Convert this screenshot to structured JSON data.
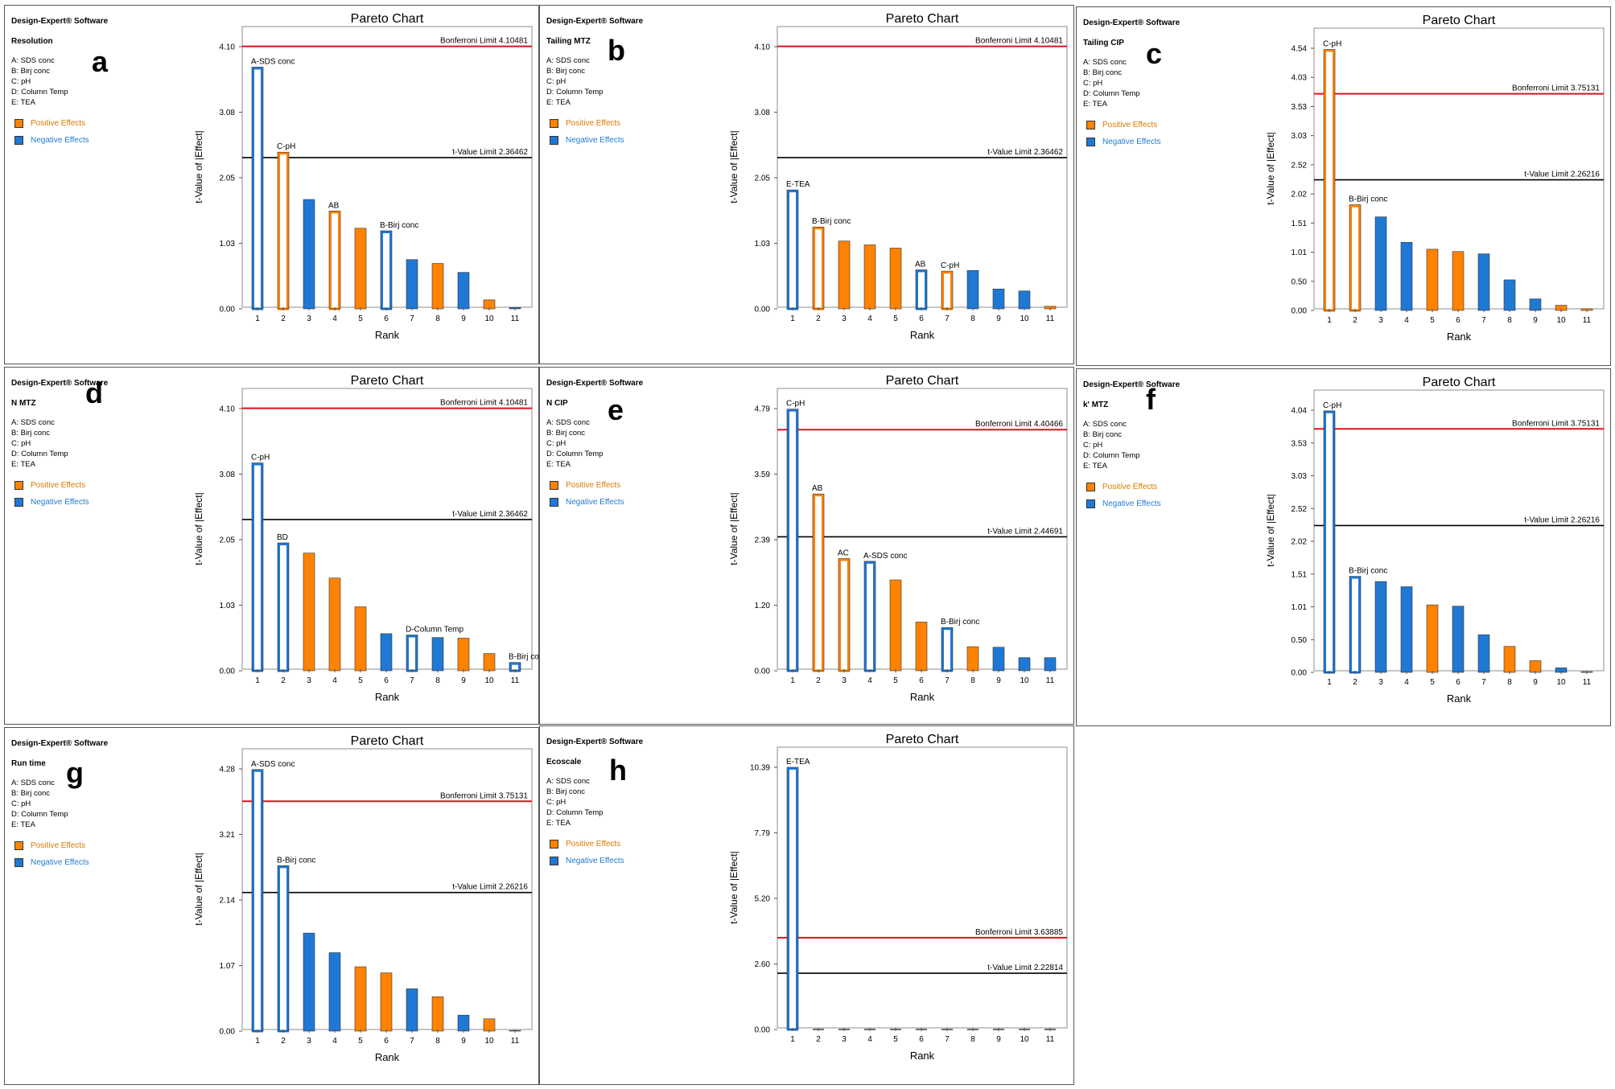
{
  "colors": {
    "positive": "#ff8200",
    "negative": "#1f78d4",
    "bonferroni": "#e0111b",
    "tvalue": "#000000",
    "posText": "#d97a00",
    "negText": "#1f7bd3"
  },
  "chart_data": [
    {
      "panel": "a",
      "type": "bar",
      "chart_title": "Pareto Chart",
      "brand": "Design-Expert® Software",
      "response": "Resolution",
      "factors": [
        "A: SDS conc",
        "B: Birj conc",
        "C: pH",
        "D: Column Temp",
        "E: TEA"
      ],
      "legend": [
        "Positive Effects",
        "Negative Effects"
      ],
      "xlabel": "Rank",
      "ylabel": "t-Value of |Effect|",
      "yticks": [
        "0.00",
        "1.03",
        "2.05",
        "3.08",
        "4.10"
      ],
      "ylim": [
        0,
        4.1
      ],
      "categories": [
        "1",
        "2",
        "3",
        "4",
        "5",
        "6",
        "7",
        "8",
        "9",
        "10",
        "11"
      ],
      "values": [
        3.78,
        2.45,
        1.71,
        1.53,
        1.26,
        1.22,
        0.77,
        0.71,
        0.57,
        0.14,
        0.02
      ],
      "signs": [
        "neg",
        "pos",
        "neg",
        "pos",
        "pos",
        "neg",
        "neg",
        "pos",
        "neg",
        "pos",
        "neg"
      ],
      "filled": [
        false,
        false,
        true,
        false,
        true,
        false,
        true,
        true,
        true,
        true,
        true
      ],
      "bar_labels": [
        {
          "rank": 1,
          "text": "A-SDS conc"
        },
        {
          "rank": 2,
          "text": "C-pH"
        },
        {
          "rank": 4,
          "text": "AB"
        },
        {
          "rank": 6,
          "text": "B-Birj conc"
        }
      ],
      "bonferroni": {
        "value": 4.10481,
        "label": "Bonferroni Limit 4.10481"
      },
      "tlimit": {
        "value": 2.36462,
        "label": "t-Value Limit 2.36462"
      }
    },
    {
      "panel": "b",
      "type": "bar",
      "chart_title": "Pareto Chart",
      "brand": "Design-Expert® Software",
      "response": "Tailing MTZ",
      "factors": [
        "A: SDS conc",
        "B: Birj conc",
        "C: pH",
        "D: Column Temp",
        "E: TEA"
      ],
      "legend": [
        "Positive Effects",
        "Negative Effects"
      ],
      "xlabel": "Rank",
      "ylabel": "t-Value of |Effect|",
      "yticks": [
        "0.00",
        "1.03",
        "2.05",
        "3.08",
        "4.10"
      ],
      "ylim": [
        0,
        4.1
      ],
      "categories": [
        "1",
        "2",
        "3",
        "4",
        "5",
        "6",
        "7",
        "8",
        "9",
        "10",
        "11"
      ],
      "values": [
        1.86,
        1.28,
        1.06,
        1.0,
        0.95,
        0.61,
        0.59,
        0.6,
        0.31,
        0.28,
        0.04
      ],
      "signs": [
        "neg",
        "pos",
        "pos",
        "pos",
        "pos",
        "neg",
        "pos",
        "neg",
        "neg",
        "neg",
        "pos"
      ],
      "filled": [
        false,
        false,
        true,
        true,
        true,
        false,
        false,
        true,
        true,
        true,
        true
      ],
      "bar_labels": [
        {
          "rank": 1,
          "text": "E-TEA"
        },
        {
          "rank": 2,
          "text": "B-Birj conc"
        },
        {
          "rank": 6,
          "text": "AB"
        },
        {
          "rank": 7,
          "text": "C-pH"
        }
      ],
      "bonferroni": {
        "value": 4.10481,
        "label": "Bonferroni Limit 4.10481"
      },
      "tlimit": {
        "value": 2.36462,
        "label": "t-Value Limit 2.36462"
      }
    },
    {
      "panel": "c",
      "type": "bar",
      "chart_title": "Pareto Chart",
      "brand": "Design-Expert® Software",
      "response": "Tailing CIP",
      "factors": [
        "A: SDS conc",
        "B: Birj conc",
        "C: pH",
        "D: Column Temp",
        "E: TEA"
      ],
      "legend": [
        "Positive Effects",
        "Negative Effects"
      ],
      "xlabel": "Rank",
      "ylabel": "t-Value of |Effect|",
      "yticks": [
        "0.00",
        "0.50",
        "1.01",
        "1.51",
        "2.02",
        "2.52",
        "3.03",
        "3.53",
        "4.03",
        "4.54"
      ],
      "ylim": [
        0,
        4.54
      ],
      "categories": [
        "1",
        "2",
        "3",
        "4",
        "5",
        "6",
        "7",
        "8",
        "9",
        "10",
        "11"
      ],
      "values": [
        4.52,
        1.83,
        1.62,
        1.18,
        1.06,
        1.02,
        0.98,
        0.53,
        0.2,
        0.09,
        0.03
      ],
      "signs": [
        "pos",
        "pos",
        "neg",
        "neg",
        "pos",
        "pos",
        "neg",
        "neg",
        "neg",
        "pos",
        "pos"
      ],
      "filled": [
        false,
        false,
        true,
        true,
        true,
        true,
        true,
        true,
        true,
        true,
        true
      ],
      "bar_labels": [
        {
          "rank": 1,
          "text": "C-pH"
        },
        {
          "rank": 2,
          "text": "B-Birj conc"
        }
      ],
      "bonferroni": {
        "value": 3.75131,
        "label": "Bonferroni Limit 3.75131"
      },
      "tlimit": {
        "value": 2.26216,
        "label": "t-Value Limit 2.26216"
      }
    },
    {
      "panel": "d",
      "type": "bar",
      "chart_title": "Pareto Chart",
      "brand": "Design-Expert® Software",
      "response": "N MTZ",
      "factors": [
        "A: SDS conc",
        "B: Birj conc",
        "C: pH",
        "D: Column Temp",
        "E: TEA"
      ],
      "legend": [
        "Positive Effects",
        "Negative Effects"
      ],
      "xlabel": "Rank",
      "ylabel": "t-Value of |Effect|",
      "yticks": [
        "0.00",
        "1.03",
        "2.05",
        "3.08",
        "4.10"
      ],
      "ylim": [
        0,
        4.1
      ],
      "categories": [
        "1",
        "2",
        "3",
        "4",
        "5",
        "6",
        "7",
        "8",
        "9",
        "10",
        "11"
      ],
      "values": [
        3.25,
        2.0,
        1.84,
        1.45,
        1.0,
        0.58,
        0.56,
        0.52,
        0.51,
        0.27,
        0.13
      ],
      "signs": [
        "neg",
        "neg",
        "pos",
        "pos",
        "pos",
        "neg",
        "neg",
        "neg",
        "pos",
        "pos",
        "neg"
      ],
      "filled": [
        false,
        false,
        true,
        true,
        true,
        true,
        false,
        true,
        true,
        true,
        false
      ],
      "bar_labels": [
        {
          "rank": 1,
          "text": "C-pH"
        },
        {
          "rank": 2,
          "text": "BD"
        },
        {
          "rank": 7,
          "text": "D-Column Temp"
        },
        {
          "rank": 11,
          "text": "B-Birj conc"
        }
      ],
      "bonferroni": {
        "value": 4.10481,
        "label": "Bonferroni Limit 4.10481"
      },
      "tlimit": {
        "value": 2.36462,
        "label": "t-Value Limit 2.36462"
      }
    },
    {
      "panel": "e",
      "type": "bar",
      "chart_title": "Pareto Chart",
      "brand": "Design-Expert® Software",
      "response": "N CIP",
      "factors": [
        "A: SDS conc",
        "B: Birj conc",
        "C: pH",
        "D: Column Temp",
        "E: TEA"
      ],
      "legend": [
        "Positive Effects",
        "Negative Effects"
      ],
      "xlabel": "Rank",
      "ylabel": "t-Value of |Effect|",
      "yticks": [
        "0.00",
        "1.20",
        "2.39",
        "3.59",
        "4.79"
      ],
      "ylim": [
        0,
        4.79
      ],
      "categories": [
        "1",
        "2",
        "3",
        "4",
        "5",
        "6",
        "7",
        "8",
        "9",
        "10",
        "11"
      ],
      "values": [
        4.78,
        3.23,
        2.05,
        2.0,
        1.66,
        0.89,
        0.79,
        0.44,
        0.43,
        0.24,
        0.24
      ],
      "signs": [
        "neg",
        "pos",
        "pos",
        "neg",
        "pos",
        "pos",
        "neg",
        "pos",
        "neg",
        "neg",
        "neg"
      ],
      "filled": [
        false,
        false,
        false,
        false,
        true,
        true,
        false,
        true,
        true,
        true,
        true
      ],
      "bar_labels": [
        {
          "rank": 1,
          "text": "C-pH"
        },
        {
          "rank": 2,
          "text": "AB"
        },
        {
          "rank": 3,
          "text": "AC"
        },
        {
          "rank": 4,
          "text": "A-SDS conc"
        },
        {
          "rank": 7,
          "text": "B-Birj conc"
        }
      ],
      "bonferroni": {
        "value": 4.40466,
        "label": "Bonferroni Limit 4.40466"
      },
      "tlimit": {
        "value": 2.44691,
        "label": "t-Value Limit 2.44691"
      }
    },
    {
      "panel": "f",
      "type": "bar",
      "chart_title": "Pareto Chart",
      "brand": "Design-Expert® Software",
      "response": "k' MTZ",
      "factors": [
        "A: SDS conc",
        "B: Birj conc",
        "C: pH",
        "D: Column Temp",
        "E: TEA"
      ],
      "legend": [
        "Positive Effects",
        "Negative Effects"
      ],
      "xlabel": "Rank",
      "ylabel": "t-Value of |Effect|",
      "yticks": [
        "0.00",
        "0.50",
        "1.01",
        "1.51",
        "2.02",
        "2.52",
        "3.03",
        "3.53",
        "4.04"
      ],
      "ylim": [
        0,
        4.04
      ],
      "categories": [
        "1",
        "2",
        "3",
        "4",
        "5",
        "6",
        "7",
        "8",
        "9",
        "10",
        "11"
      ],
      "values": [
        4.03,
        1.48,
        1.4,
        1.32,
        1.04,
        1.02,
        0.58,
        0.4,
        0.18,
        0.07,
        0.01
      ],
      "signs": [
        "neg",
        "neg",
        "neg",
        "neg",
        "pos",
        "neg",
        "neg",
        "pos",
        "pos",
        "neg",
        "neg"
      ],
      "filled": [
        false,
        false,
        true,
        true,
        true,
        true,
        true,
        true,
        true,
        true,
        true
      ],
      "bar_labels": [
        {
          "rank": 1,
          "text": "C-pH"
        },
        {
          "rank": 2,
          "text": "B-Birj conc"
        }
      ],
      "bonferroni": {
        "value": 3.75131,
        "label": "Bonferroni Limit 3.75131"
      },
      "tlimit": {
        "value": 2.26216,
        "label": "t-Value Limit 2.26216"
      }
    },
    {
      "panel": "g",
      "type": "bar",
      "chart_title": "Pareto Chart",
      "brand": "Design-Expert® Software",
      "response": "Run time",
      "factors": [
        "A: SDS conc",
        "B: Birj conc",
        "C: pH",
        "D: Column Temp",
        "E: TEA"
      ],
      "legend": [
        "Positive Effects",
        "Negative Effects"
      ],
      "xlabel": "Rank",
      "ylabel": "t-Value of |Effect|",
      "yticks": [
        "0.00",
        "1.07",
        "2.14",
        "3.21",
        "4.28"
      ],
      "ylim": [
        0,
        4.28
      ],
      "categories": [
        "1",
        "2",
        "3",
        "4",
        "5",
        "6",
        "7",
        "8",
        "9",
        "10",
        "11"
      ],
      "values": [
        4.27,
        2.7,
        1.6,
        1.28,
        1.05,
        0.95,
        0.69,
        0.56,
        0.26,
        0.2,
        0.01
      ],
      "signs": [
        "neg",
        "neg",
        "neg",
        "neg",
        "pos",
        "pos",
        "neg",
        "pos",
        "neg",
        "pos",
        "neg"
      ],
      "filled": [
        false,
        false,
        true,
        true,
        true,
        true,
        true,
        true,
        true,
        true,
        true
      ],
      "bar_labels": [
        {
          "rank": 1,
          "text": "A-SDS conc"
        },
        {
          "rank": 2,
          "text": "B-Birj conc"
        }
      ],
      "bonferroni": {
        "value": 3.75131,
        "label": "Bonferroni Limit 3.75131"
      },
      "tlimit": {
        "value": 2.26216,
        "label": "t-Value Limit 2.26216"
      }
    },
    {
      "panel": "h",
      "type": "bar",
      "chart_title": "Pareto Chart",
      "brand": "Design-Expert® Software",
      "response": "Ecoscale",
      "factors": [
        "A: SDS conc",
        "B: Birj conc",
        "C: pH",
        "D: Column Temp",
        "E: TEA"
      ],
      "legend": [
        "Positive Effects",
        "Negative Effects"
      ],
      "xlabel": "Rank",
      "ylabel": "t-Value of |Effect|",
      "yticks": [
        "0.00",
        "2.60",
        "5.20",
        "7.79",
        "10.39"
      ],
      "ylim": [
        0,
        10.39
      ],
      "categories": [
        "1",
        "2",
        "3",
        "4",
        "5",
        "6",
        "7",
        "8",
        "9",
        "10",
        "11"
      ],
      "values": [
        10.39,
        0,
        0,
        0,
        0,
        0,
        0,
        0,
        0,
        0,
        0
      ],
      "signs": [
        "neg",
        "neg",
        "neg",
        "neg",
        "neg",
        "neg",
        "neg",
        "neg",
        "neg",
        "neg",
        "neg"
      ],
      "filled": [
        false,
        true,
        true,
        true,
        true,
        true,
        true,
        true,
        true,
        true,
        true
      ],
      "bar_labels": [
        {
          "rank": 1,
          "text": "E-TEA"
        }
      ],
      "bonferroni": {
        "value": 3.63885,
        "label": "Bonferroni Limit 3.63885"
      },
      "tlimit": {
        "value": 2.22814,
        "label": "t-Value Limit 2.22814"
      }
    }
  ]
}
